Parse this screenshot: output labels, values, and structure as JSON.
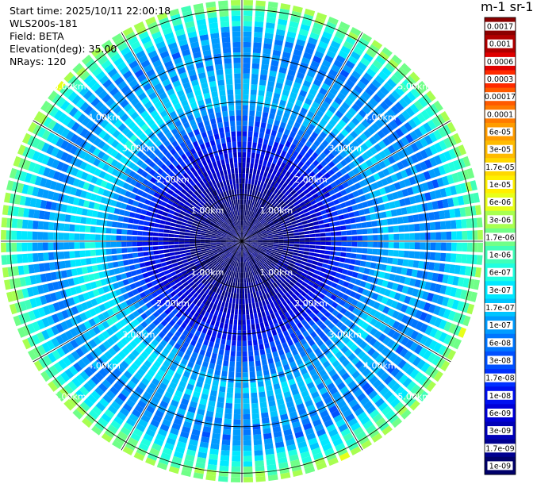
{
  "info": {
    "start_time": "Start time: 2025/10/11 22:00:18",
    "instrument": "WLS200s-181",
    "field": "Field: BETA",
    "elevation": "Elevation(deg): 35.00",
    "nrays": "NRays: 120"
  },
  "colorbar": {
    "title": "m-1 sr-1",
    "ticks": [
      "0.0017",
      "0.001",
      "0.0006",
      "0.0003",
      "0.00017",
      "0.0001",
      "6e-05",
      "3e-05",
      "1.7e-05",
      "1e-05",
      "6e-06",
      "3e-06",
      "1.7e-06",
      "1e-06",
      "6e-07",
      "3e-07",
      "1.7e-07",
      "1e-07",
      "6e-08",
      "3e-08",
      "1.7e-08",
      "1e-08",
      "6e-09",
      "3e-09",
      "1.7e-09",
      "1e-09"
    ],
    "colors": [
      "#8b0000",
      "#b00000",
      "#e00000",
      "#ff2a00",
      "#ff5a00",
      "#ff7a00",
      "#ff9c00",
      "#ffbb00",
      "#ffd800",
      "#fff000",
      "#e8ff1a",
      "#a8ff50",
      "#70ff88",
      "#40ffb8",
      "#1fffe0",
      "#00e8ff",
      "#00c4ff",
      "#009cff",
      "#0076ff",
      "#0050ff",
      "#0030ff",
      "#0010f0",
      "#0000d8",
      "#0000b8",
      "#000090",
      "#00006a"
    ]
  },
  "chart_data": {
    "type": "heatmap",
    "projection": "polar-ppi",
    "field": "BETA",
    "units": "m-1 sr-1",
    "scale": "log",
    "rays": 120,
    "elevation_deg": 35.0,
    "max_range_km": 5.2,
    "range_rings_km": [
      1,
      2,
      3,
      4,
      5
    ],
    "range_ring_labels": [
      "1.00km",
      "2.00km",
      "3.00km",
      "4.00km",
      "5.00km"
    ],
    "azimuth_gridlines_deg": [
      0,
      30,
      60,
      90,
      120,
      150,
      180,
      210,
      240,
      270,
      300,
      330
    ],
    "features": [
      {
        "range_km": 0.8,
        "typical_value": "1e-09"
      },
      {
        "range_km": 2.0,
        "typical_value": "1e-08"
      },
      {
        "range_km": 3.2,
        "typical_value": "1.7e-07"
      },
      {
        "range_km": 4.3,
        "typical_value": "6e-08"
      },
      {
        "range_km": 5.2,
        "typical_value": "3e-06"
      }
    ]
  }
}
